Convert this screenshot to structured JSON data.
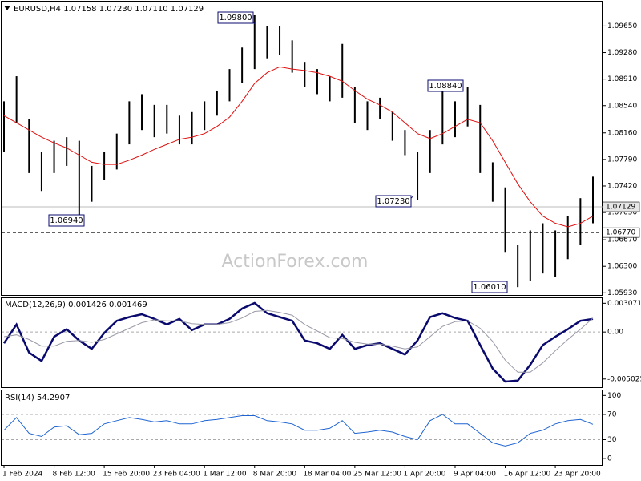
{
  "chart_data": [
    {
      "type": "ohlc",
      "title": "EURUSD,H4  1.07158 1.07230 1.07110 1.07129",
      "categories": [
        "1 Feb 2024",
        null,
        null,
        null,
        "8 Feb 12:00",
        null,
        null,
        null,
        "15 Feb 20:00",
        null,
        null,
        null,
        "23 Feb 04:00",
        null,
        null,
        null,
        "1 Mar 12:00",
        null,
        null,
        null,
        "8 Mar 20:00",
        null,
        null,
        null,
        "18 Mar 04:00",
        null,
        null,
        null,
        "25 Mar 12:00",
        null,
        null,
        null,
        "1 Apr 20:00",
        null,
        null,
        null,
        "9 Apr 04:00",
        null,
        null,
        null,
        "16 Apr 12:00",
        null,
        null,
        null,
        "23 Apr 20:00",
        null,
        null,
        null
      ],
      "series": [
        {
          "color": "#000000",
          "low": [
            1.079,
            1.083,
            1.076,
            1.0735,
            1.076,
            1.077,
            1.0694,
            1.072,
            1.075,
            1.0765,
            1.08,
            1.082,
            1.081,
            1.0815,
            1.08,
            1.08,
            1.082,
            1.084,
            1.086,
            1.0885,
            1.0905,
            1.092,
            1.0925,
            1.09,
            1.088,
            1.087,
            1.086,
            1.0865,
            1.083,
            1.082,
            1.0835,
            1.0805,
            1.0785,
            1.0723,
            1.076,
            1.08,
            1.081,
            1.0825,
            1.076,
            1.072,
            1.065,
            1.0601,
            1.061,
            1.062,
            1.0615,
            1.064,
            1.066,
            1.069
          ],
          "high": [
            1.086,
            1.0895,
            1.0835,
            1.079,
            1.0805,
            1.081,
            1.0805,
            1.077,
            1.079,
            1.0815,
            1.086,
            1.087,
            1.0855,
            1.0855,
            1.084,
            1.0845,
            1.086,
            1.0875,
            1.0905,
            1.0935,
            1.098,
            1.0965,
            1.0965,
            1.0945,
            1.0915,
            1.0905,
            1.0895,
            1.094,
            1.088,
            1.086,
            1.0865,
            1.0845,
            1.082,
            1.079,
            1.082,
            1.0884,
            1.086,
            1.088,
            1.0855,
            1.0775,
            1.074,
            1.066,
            1.068,
            1.069,
            1.068,
            1.07,
            1.0725,
            1.0755
          ]
        },
        {
          "color": "#e01010",
          "values": [
            1.084,
            1.083,
            1.082,
            1.081,
            1.0802,
            1.0795,
            1.0785,
            1.0775,
            1.0772,
            1.0772,
            1.0778,
            1.0785,
            1.0793,
            1.08,
            1.0807,
            1.081,
            1.0815,
            1.0825,
            1.0838,
            1.086,
            1.0885,
            1.09,
            1.0908,
            1.0905,
            1.0903,
            1.09,
            1.0895,
            1.0888,
            1.0875,
            1.0863,
            1.0855,
            1.0845,
            1.083,
            1.0815,
            1.0808,
            1.0815,
            1.0825,
            1.0835,
            1.083,
            1.0805,
            1.0775,
            1.0745,
            1.072,
            1.07,
            1.069,
            1.0685,
            1.069,
            1.07
          ]
        }
      ],
      "ylim": [
        1.059,
        1.0999
      ],
      "yticks": [
        {
          "value": 1.0965,
          "label": "1.09650"
        },
        {
          "value": 1.0928,
          "label": "1.09280"
        },
        {
          "value": 1.0891,
          "label": "1.08910"
        },
        {
          "value": 1.0854,
          "label": "1.08540"
        },
        {
          "value": 1.0816,
          "label": "1.08160"
        },
        {
          "value": 1.0779,
          "label": "1.07790"
        },
        {
          "value": 1.0742,
          "label": "1.07420"
        },
        {
          "value": 1.0705,
          "label": "1.07050"
        },
        {
          "value": 1.0667,
          "label": "1.06670"
        },
        {
          "value": 1.063,
          "label": "1.06300"
        },
        {
          "value": 1.0593,
          "label": "1.05930"
        }
      ],
      "price_lines": [
        {
          "value": 1.07129,
          "label": "1.07129",
          "style": "solid"
        },
        {
          "value": 1.0677,
          "label": "1.06770",
          "style": "dashed"
        }
      ],
      "annotations": [
        "1.09800",
        "1.08840",
        "1.07230",
        "1.06940",
        "1.06010"
      ]
    },
    {
      "type": "line",
      "title": "MACD(12,26,9) 0.001426 0.001469",
      "series": [
        {
          "color": "#0a0a6e",
          "width": 2.5,
          "values": [
            -0.0012,
            0.0008,
            -0.0022,
            -0.0031,
            -0.0005,
            0.0003,
            -0.0009,
            -0.0018,
            -0.0001,
            0.0012,
            0.0016,
            0.0019,
            0.0014,
            0.0008,
            0.0014,
            0.0002,
            0.0008,
            0.0008,
            0.0014,
            0.0025,
            0.0031,
            0.002,
            0.0016,
            0.0012,
            -0.0009,
            -0.0012,
            -0.0018,
            -0.0003,
            -0.0018,
            -0.0014,
            -0.0012,
            -0.0018,
            -0.0024,
            -0.0009,
            0.0016,
            0.002,
            0.0015,
            0.0012,
            -0.0014,
            -0.0039,
            -0.0053,
            -0.0052,
            -0.0035,
            -0.0014,
            -0.0005,
            0.0003,
            0.0012,
            0.0014
          ]
        },
        {
          "color": "#9a9aa8",
          "width": 1,
          "values": [
            -0.0005,
            -0.0003,
            -0.0008,
            -0.0015,
            -0.0015,
            -0.001,
            -0.0009,
            -0.0011,
            -0.0008,
            -0.0002,
            0.0004,
            0.001,
            0.0013,
            0.0012,
            0.0012,
            0.0009,
            0.0008,
            0.0008,
            0.001,
            0.0015,
            0.0022,
            0.0023,
            0.0021,
            0.0018,
            0.0008,
            0.0001,
            -0.0006,
            -0.0007,
            -0.0011,
            -0.0013,
            -0.0013,
            -0.0015,
            -0.0018,
            -0.0016,
            -0.0005,
            0.0006,
            0.0011,
            0.0012,
            0.0004,
            -0.001,
            -0.003,
            -0.0043,
            -0.0043,
            -0.0033,
            -0.002,
            -0.0008,
            0.0003,
            0.0015
          ]
        }
      ],
      "ylim": [
        -0.0059,
        0.0037
      ],
      "yticks": [
        0.003071,
        {
          "value": 0,
          "label": "0.00"
        },
        -0.005025
      ],
      "levels": [
        0
      ]
    },
    {
      "type": "line",
      "title": "RSI(14) 54.2907",
      "series": [
        {
          "color": "#1e64d2",
          "width": 1,
          "values": [
            45,
            65,
            40,
            35,
            50,
            52,
            38,
            40,
            55,
            60,
            65,
            62,
            58,
            60,
            55,
            55,
            60,
            62,
            65,
            68,
            68,
            60,
            58,
            55,
            45,
            45,
            48,
            60,
            40,
            42,
            45,
            42,
            35,
            30,
            60,
            70,
            55,
            55,
            40,
            25,
            20,
            25,
            40,
            45,
            55,
            60,
            62,
            54.2907
          ]
        }
      ],
      "ylim": [
        -10,
        108
      ],
      "yticks": [
        100,
        70,
        30,
        0
      ],
      "levels": [
        70,
        30
      ]
    }
  ],
  "watermark": "ActionForex.com"
}
